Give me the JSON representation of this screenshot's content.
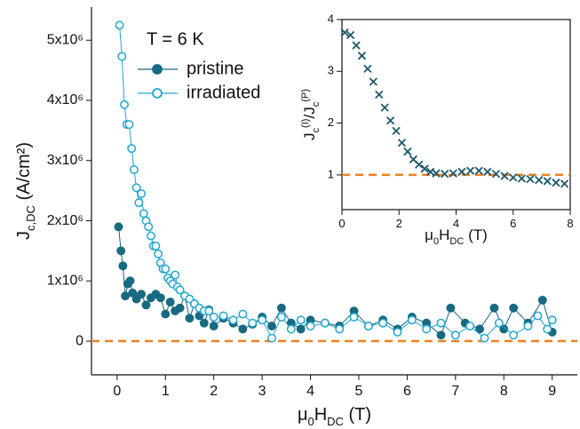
{
  "chart_data": [
    {
      "type": "line",
      "annotation": "T = 6 K",
      "xlabel": [
        {
          "text": "μ"
        },
        {
          "text": "0",
          "sub": true
        },
        {
          "text": "H"
        },
        {
          "text": "DC",
          "sub": true
        },
        {
          "text": " (T)"
        }
      ],
      "ylabel": [
        {
          "text": "J"
        },
        {
          "text": "c,DC",
          "sub": true
        },
        {
          "text": " (A/cm²)"
        }
      ],
      "xlim": [
        -0.53,
        9.52
      ],
      "ylim": [
        -560000,
        5550000
      ],
      "xticks": [
        0,
        1,
        2,
        3,
        4,
        5,
        6,
        7,
        8,
        9
      ],
      "yticks": [
        0,
        {
          "value": 1000000,
          "label": "1x10⁶"
        },
        {
          "value": 2000000,
          "label": "2x10⁶"
        },
        {
          "value": 3000000,
          "label": "3x10⁶"
        },
        {
          "value": 4000000,
          "label": "4x10⁶"
        },
        {
          "value": 5000000,
          "label": "5x10⁶"
        }
      ],
      "reference_line": {
        "value": 0,
        "color": "#f08020"
      },
      "legend": "upper left",
      "series": [
        {
          "name": "pristine",
          "color": "#176a80",
          "marker": "filled-circle",
          "x": [
            0.03,
            0.08,
            0.12,
            0.17,
            0.22,
            0.27,
            0.32,
            0.4,
            0.5,
            0.6,
            0.7,
            0.8,
            0.9,
            1.0,
            1.1,
            1.2,
            1.3,
            1.4,
            1.5,
            1.6,
            1.7,
            1.8,
            1.9,
            2.0,
            2.2,
            2.4,
            2.6,
            2.8,
            3.0,
            3.2,
            3.4,
            3.6,
            3.8,
            4.0,
            4.3,
            4.6,
            4.9,
            5.2,
            5.5,
            5.8,
            6.1,
            6.4,
            6.7,
            6.9,
            7.2,
            7.5,
            7.8,
            8.0,
            8.2,
            8.5,
            8.8,
            9.0
          ],
          "values": [
            1900000,
            1500000,
            1250000,
            750000,
            950000,
            1000000,
            800000,
            700000,
            780000,
            600000,
            720000,
            780000,
            720000,
            450000,
            650000,
            500000,
            550000,
            750000,
            380000,
            620000,
            420000,
            300000,
            520000,
            250000,
            380000,
            300000,
            200000,
            280000,
            400000,
            250000,
            550000,
            300000,
            200000,
            350000,
            300000,
            250000,
            500000,
            250000,
            350000,
            200000,
            400000,
            300000,
            100000,
            550000,
            300000,
            200000,
            550000,
            200000,
            550000,
            300000,
            680000,
            150000
          ]
        },
        {
          "name": "irradiated",
          "color": "#22a6d2",
          "marker": "open-circle",
          "x": [
            0.05,
            0.1,
            0.15,
            0.2,
            0.25,
            0.3,
            0.35,
            0.4,
            0.45,
            0.5,
            0.55,
            0.6,
            0.65,
            0.7,
            0.75,
            0.8,
            0.85,
            0.9,
            0.95,
            1.0,
            1.05,
            1.1,
            1.15,
            1.2,
            1.25,
            1.3,
            1.4,
            1.5,
            1.6,
            1.7,
            1.8,
            1.9,
            2.0,
            2.2,
            2.4,
            2.6,
            2.8,
            3.0,
            3.2,
            3.4,
            3.6,
            3.8,
            4.0,
            4.3,
            4.6,
            4.9,
            5.2,
            5.5,
            5.8,
            6.1,
            6.4,
            6.7,
            7.0,
            7.3,
            7.6,
            7.9,
            8.2,
            8.5,
            8.7,
            8.9,
            9.0
          ],
          "values": [
            5250000,
            4730000,
            3930000,
            3600000,
            3600000,
            3200000,
            2850000,
            2550000,
            2300000,
            2450000,
            2120000,
            2000000,
            1900000,
            1750000,
            1580000,
            1580000,
            1450000,
            1300000,
            1200000,
            1200000,
            1050000,
            1000000,
            950000,
            1100000,
            900000,
            850000,
            750000,
            700000,
            620000,
            550000,
            500000,
            500000,
            400000,
            420000,
            350000,
            450000,
            300000,
            350000,
            50000,
            400000,
            200000,
            350000,
            250000,
            300000,
            200000,
            400000,
            250000,
            300000,
            150000,
            350000,
            200000,
            300000,
            100000,
            250000,
            50000,
            300000,
            100000,
            250000,
            420000,
            200000,
            350000
          ]
        }
      ]
    },
    {
      "type": "scatter",
      "xlabel": [
        {
          "text": "μ"
        },
        {
          "text": "0",
          "sub": true
        },
        {
          "text": "H"
        },
        {
          "text": "DC",
          "sub": true
        },
        {
          "text": " (T)"
        }
      ],
      "ylabel": [
        {
          "text": "J"
        },
        {
          "text": "c",
          "sub": true
        },
        {
          "text": "(I)",
          "sup": true
        },
        {
          "text": "/J"
        },
        {
          "text": "c",
          "sub": true
        },
        {
          "text": "(P)",
          "sup": true
        }
      ],
      "xlim": [
        0,
        8
      ],
      "ylim": [
        0.33,
        4
      ],
      "xticks": [
        0,
        2,
        4,
        6,
        8
      ],
      "yticks": [
        1,
        2,
        3,
        4
      ],
      "reference_line": {
        "value": 1,
        "color": "#f08020"
      },
      "series": [
        {
          "color": "#1d5a6c",
          "marker": "x",
          "x": [
            0.1,
            0.3,
            0.5,
            0.7,
            0.9,
            1.1,
            1.3,
            1.5,
            1.7,
            1.9,
            2.1,
            2.3,
            2.5,
            2.7,
            2.9,
            3.1,
            3.3,
            3.6,
            3.9,
            4.2,
            4.5,
            4.8,
            5.1,
            5.4,
            5.7,
            6.0,
            6.3,
            6.6,
            6.9,
            7.2,
            7.5,
            7.8
          ],
          "values": [
            3.75,
            3.7,
            3.5,
            3.3,
            3.05,
            2.8,
            2.55,
            2.3,
            2.05,
            1.85,
            1.62,
            1.45,
            1.3,
            1.2,
            1.12,
            1.06,
            1.03,
            1.02,
            1.03,
            1.06,
            1.08,
            1.08,
            1.06,
            1.02,
            0.98,
            0.95,
            0.93,
            0.92,
            0.9,
            0.88,
            0.85,
            0.83
          ]
        }
      ]
    }
  ]
}
